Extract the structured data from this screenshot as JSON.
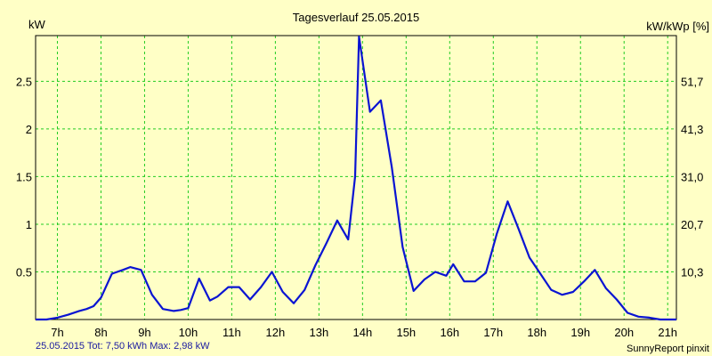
{
  "chart_data": {
    "type": "line",
    "title": "Tagesverlauf 25.05.2015",
    "ylabel": "kW",
    "ylabel_right": "kW/kWp [%]",
    "xlim": [
      6.5,
      21.2
    ],
    "ylim": [
      0,
      2.98
    ],
    "x_ticks": [
      7,
      8,
      9,
      10,
      11,
      12,
      13,
      14,
      15,
      16,
      17,
      18,
      19,
      20,
      21
    ],
    "x_tick_labels": [
      "7h",
      "8h",
      "9h",
      "10h",
      "11h",
      "12h",
      "13h",
      "14h",
      "15h",
      "16h",
      "17h",
      "18h",
      "19h",
      "20h",
      "21h"
    ],
    "y_ticks": [
      0.5,
      1,
      1.5,
      2,
      2.5
    ],
    "y_tick_labels": [
      "0.5",
      "1",
      "1.5",
      "2",
      "2.5"
    ],
    "y_right_ticks": [
      0.5,
      1,
      1.5,
      2,
      2.5
    ],
    "y_right_tick_labels": [
      "10,3",
      "20,7",
      "31,0",
      "41,3",
      "51,7"
    ],
    "grid": true,
    "series": [
      {
        "color": "#0a14d2",
        "x": [
          6.5,
          6.75,
          7.0,
          7.25,
          7.5,
          7.67,
          7.83,
          8.0,
          8.25,
          8.5,
          8.67,
          8.92,
          9.17,
          9.42,
          9.67,
          9.83,
          10.0,
          10.25,
          10.5,
          10.67,
          10.92,
          11.17,
          11.42,
          11.67,
          11.92,
          12.17,
          12.42,
          12.67,
          12.92,
          13.17,
          13.42,
          13.67,
          13.83,
          13.92,
          14.17,
          14.42,
          14.67,
          14.92,
          15.17,
          15.42,
          15.67,
          15.92,
          16.08,
          16.33,
          16.58,
          16.83,
          17.08,
          17.33,
          17.58,
          17.83,
          18.08,
          18.33,
          18.58,
          18.83,
          19.08,
          19.33,
          19.58,
          19.83,
          20.08,
          20.33,
          20.58,
          20.83,
          21.08,
          21.2
        ],
        "y": [
          0.0,
          0.0,
          0.02,
          0.05,
          0.09,
          0.11,
          0.14,
          0.23,
          0.48,
          0.52,
          0.55,
          0.52,
          0.26,
          0.11,
          0.09,
          0.1,
          0.12,
          0.43,
          0.2,
          0.24,
          0.34,
          0.34,
          0.21,
          0.34,
          0.5,
          0.29,
          0.17,
          0.31,
          0.57,
          0.8,
          1.04,
          0.84,
          1.5,
          2.97,
          2.18,
          2.3,
          1.6,
          0.76,
          0.3,
          0.42,
          0.5,
          0.46,
          0.58,
          0.4,
          0.4,
          0.49,
          0.9,
          1.24,
          0.95,
          0.65,
          0.48,
          0.31,
          0.26,
          0.29,
          0.4,
          0.52,
          0.33,
          0.21,
          0.07,
          0.03,
          0.02,
          0.0,
          0.0,
          0.0
        ]
      }
    ]
  },
  "footer": {
    "stats": "25.05.2015 Tot: 7,50 kWh Max: 2,98 kW",
    "brand": "SunnyReport pinxit"
  }
}
